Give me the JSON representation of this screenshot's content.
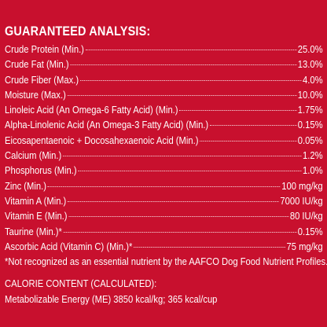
{
  "title": "GUARANTEED ANALYSIS:",
  "rows": [
    {
      "name": "Crude Protein (Min.)",
      "value": "25.0%"
    },
    {
      "name": "Crude Fat (Min.)",
      "value": "13.0%"
    },
    {
      "name": "Crude Fiber (Max.)",
      "value": "4.0%"
    },
    {
      "name": "Moisture (Max.)",
      "value": "10.0%"
    },
    {
      "name": "Linoleic Acid (An Omega-6 Fatty Acid) (Min.)",
      "value": "1.75%"
    },
    {
      "name": "Alpha-Linolenic Acid (An Omega-3 Fatty Acid) (Min.)",
      "value": "0.15%"
    },
    {
      "name": "Eicosapentaenoic + Docosahexaenoic Acid (Min.)",
      "value": "0.05%"
    },
    {
      "name": "Calcium (Min.)",
      "value": "1.2%"
    },
    {
      "name": "Phosphorus (Min.)",
      "value": "1.0%"
    },
    {
      "name": "Zinc (Min.)",
      "value": "100 mg/kg"
    },
    {
      "name": "Vitamin A (Min.)",
      "value": "7000 IU/kg"
    },
    {
      "name": "Vitamin E (Min.)",
      "value": "80 IU/kg"
    },
    {
      "name": "Taurine (Min.)*",
      "value": "0.15%"
    },
    {
      "name": "Ascorbic Acid (Vitamin C) (Min.)*",
      "value": "75 mg/kg"
    }
  ],
  "footnote": "*Not recognized as an essential nutrient by the AAFCO Dog Food Nutrient Profiles.",
  "calorie_heading": "CALORIE CONTENT (CALCULATED):",
  "calorie_text": "Metabolizable Energy (ME) 3850 kcal/kg; 365 kcal/cup"
}
